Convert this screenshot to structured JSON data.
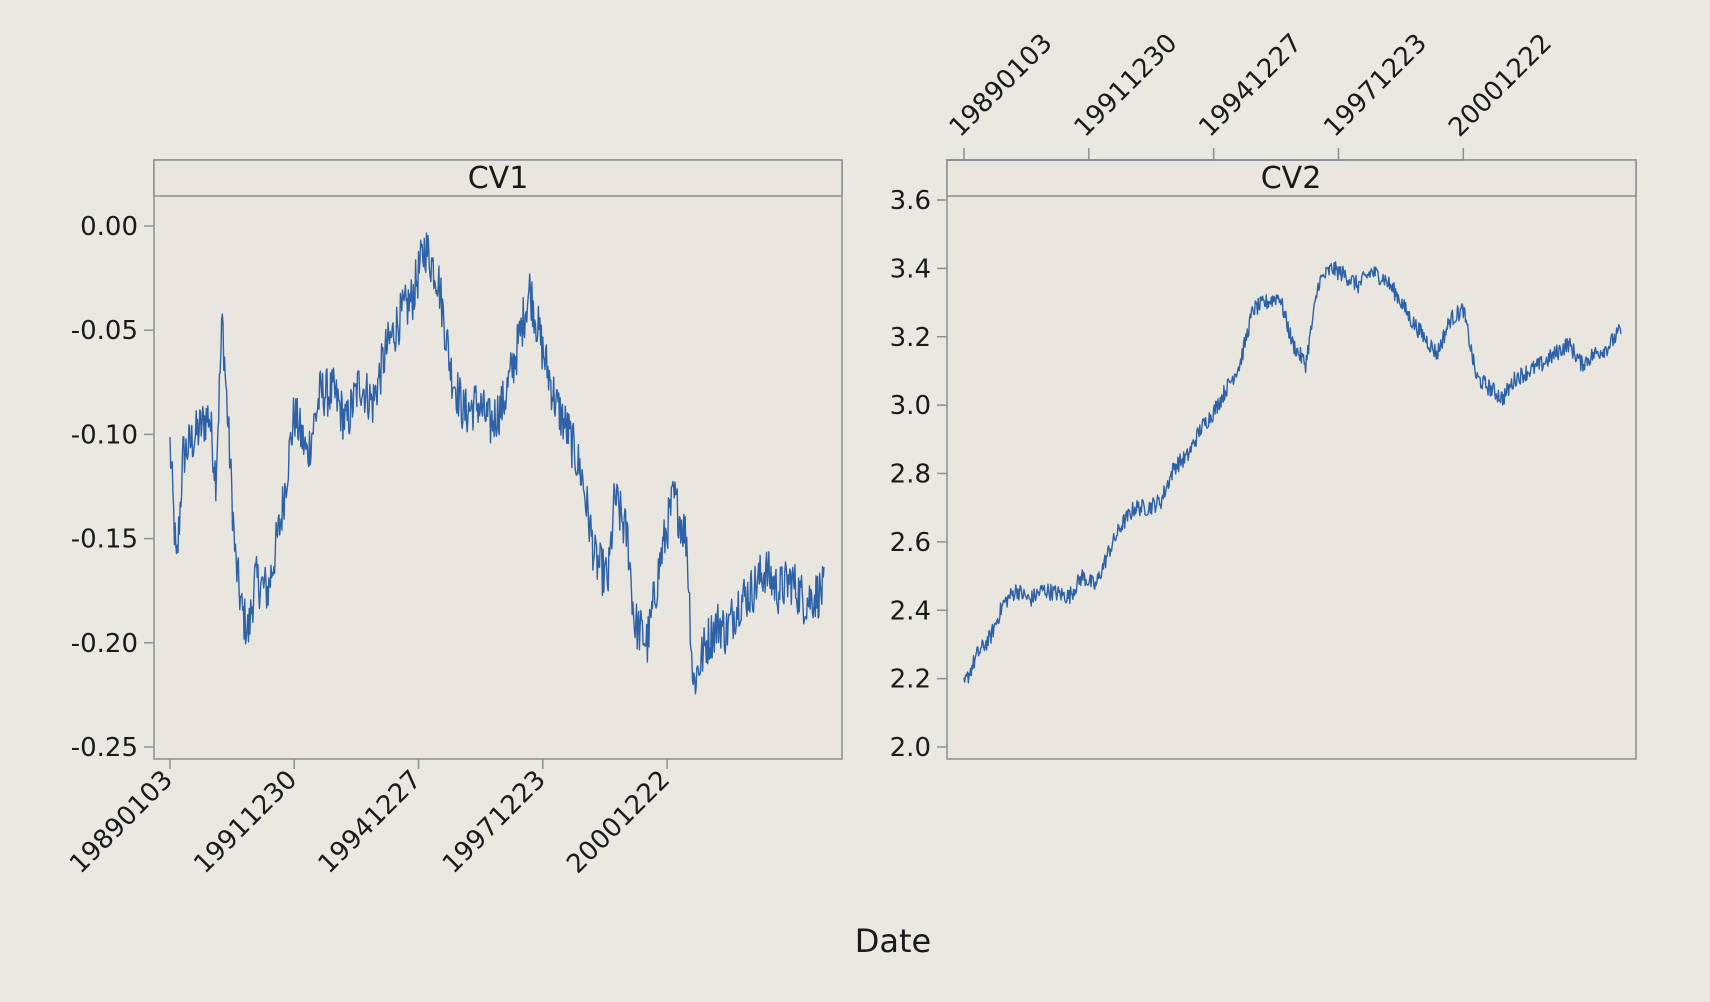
{
  "chart_data": {
    "type": "line",
    "layout": "side-by-side panels, shared x axis label",
    "xlabel": "Date",
    "line_color": "#2e62a8",
    "grid": false,
    "x_ticks": [
      "19890103",
      "19911230",
      "19941227",
      "19971223",
      "20001222"
    ],
    "x_tick_fractions": [
      0.0,
      0.19,
      0.38,
      0.57,
      0.76
    ],
    "panels": [
      {
        "title": "CV1",
        "x_axis_position": "bottom",
        "ylim": [
          -0.25,
          0.02
        ],
        "yticks": [
          0.0,
          -0.05,
          -0.1,
          -0.15,
          -0.2,
          -0.25
        ],
        "ytick_labels": [
          "0.00",
          "-0.05",
          "-0.10",
          "-0.15",
          "-0.20",
          "-0.25"
        ],
        "profile_fractions": [
          0.0,
          0.01,
          0.02,
          0.04,
          0.06,
          0.07,
          0.08,
          0.1,
          0.11,
          0.12,
          0.13,
          0.15,
          0.17,
          0.19,
          0.21,
          0.23,
          0.25,
          0.27,
          0.29,
          0.31,
          0.33,
          0.35,
          0.37,
          0.39,
          0.41,
          0.43,
          0.45,
          0.47,
          0.49,
          0.51,
          0.53,
          0.55,
          0.57,
          0.59,
          0.61,
          0.63,
          0.65,
          0.67,
          0.68,
          0.7,
          0.71,
          0.73,
          0.75,
          0.77,
          0.79,
          0.8,
          0.82,
          0.84,
          0.85,
          0.87,
          0.89,
          0.91,
          0.93,
          0.95,
          0.97,
          1.0
        ],
        "profile_values": [
          -0.105,
          -0.165,
          -0.11,
          -0.1,
          -0.09,
          -0.12,
          -0.045,
          -0.16,
          -0.185,
          -0.195,
          -0.17,
          -0.175,
          -0.14,
          -0.09,
          -0.11,
          -0.08,
          -0.08,
          -0.095,
          -0.075,
          -0.085,
          -0.06,
          -0.045,
          -0.035,
          -0.01,
          -0.025,
          -0.07,
          -0.09,
          -0.085,
          -0.095,
          -0.085,
          -0.06,
          -0.03,
          -0.06,
          -0.085,
          -0.1,
          -0.12,
          -0.16,
          -0.17,
          -0.13,
          -0.15,
          -0.19,
          -0.2,
          -0.16,
          -0.13,
          -0.15,
          -0.22,
          -0.2,
          -0.19,
          -0.195,
          -0.18,
          -0.175,
          -0.165,
          -0.175,
          -0.17,
          -0.18,
          -0.175
        ],
        "noise_amplitude": 0.012
      },
      {
        "title": "CV2",
        "x_axis_position": "top",
        "ylim": [
          1.97,
          3.72
        ],
        "yticks": [
          2.0,
          2.2,
          2.4,
          2.6,
          2.8,
          3.0,
          3.2,
          3.4,
          3.6
        ],
        "ytick_labels": [
          "2.0",
          "2.2",
          "2.4",
          "2.6",
          "2.8",
          "3.0",
          "3.2",
          "3.4",
          "3.6"
        ],
        "profile_fractions": [
          0.0,
          0.02,
          0.04,
          0.06,
          0.08,
          0.1,
          0.12,
          0.14,
          0.16,
          0.18,
          0.2,
          0.22,
          0.24,
          0.26,
          0.28,
          0.3,
          0.32,
          0.34,
          0.36,
          0.38,
          0.4,
          0.42,
          0.44,
          0.46,
          0.48,
          0.5,
          0.52,
          0.54,
          0.56,
          0.58,
          0.6,
          0.62,
          0.64,
          0.66,
          0.68,
          0.7,
          0.72,
          0.74,
          0.76,
          0.78,
          0.8,
          0.82,
          0.84,
          0.86,
          0.88,
          0.9,
          0.92,
          0.94,
          0.96,
          0.98,
          1.0
        ],
        "profile_values": [
          2.18,
          2.27,
          2.32,
          2.42,
          2.46,
          2.43,
          2.46,
          2.45,
          2.44,
          2.5,
          2.47,
          2.57,
          2.65,
          2.7,
          2.7,
          2.72,
          2.82,
          2.85,
          2.93,
          2.98,
          3.05,
          3.12,
          3.28,
          3.3,
          3.32,
          3.18,
          3.12,
          3.36,
          3.4,
          3.38,
          3.35,
          3.39,
          3.37,
          3.32,
          3.25,
          3.2,
          3.15,
          3.25,
          3.28,
          3.08,
          3.05,
          3.02,
          3.08,
          3.1,
          3.12,
          3.15,
          3.18,
          3.12,
          3.15,
          3.17,
          3.22
        ],
        "noise_amplitude": 0.025
      }
    ]
  }
}
